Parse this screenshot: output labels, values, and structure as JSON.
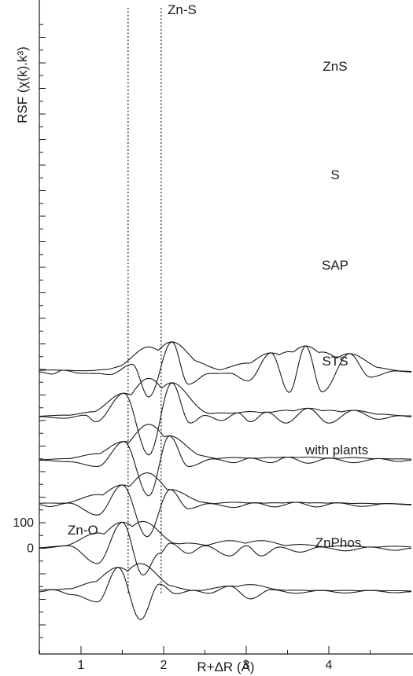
{
  "chart_data": {
    "type": "line",
    "xlabel": "R+ΔR (Å)",
    "ylabel": "RSF (χ(k).k³)",
    "xlim": [
      0.5,
      5.0
    ],
    "x_ticks": [
      1,
      2,
      3,
      4
    ],
    "x_tick_labels": [
      "1",
      "2",
      "3",
      "4"
    ],
    "y_tick_labels": [
      "100",
      "0"
    ],
    "y_tick_values": [
      100,
      0
    ],
    "reference_lines": [
      {
        "x": 1.57,
        "style": "dotted"
      },
      {
        "x": 1.97,
        "style": "dotted",
        "label": "Zn-S"
      }
    ],
    "annotations": [
      {
        "text": "Zn-S",
        "x": 1.97
      },
      {
        "text": "Zn-O",
        "x": 1.45
      }
    ],
    "series": [
      {
        "name": "ZnS",
        "offset": 690,
        "peaks": [
          [
            0.65,
            -8
          ],
          [
            0.78,
            7
          ],
          [
            1.0,
            -5
          ],
          [
            1.2,
            -6
          ],
          [
            1.35,
            -10
          ],
          [
            1.62,
            30
          ],
          [
            1.82,
            -98
          ],
          [
            2.1,
            118
          ],
          [
            2.3,
            -48
          ],
          [
            2.55,
            -6
          ],
          [
            2.8,
            -5
          ],
          [
            3.02,
            -35
          ],
          [
            3.3,
            75
          ],
          [
            3.52,
            -80
          ],
          [
            3.72,
            102
          ],
          [
            3.92,
            -78
          ],
          [
            4.25,
            72
          ],
          [
            4.5,
            -20
          ],
          [
            4.8,
            4
          ]
        ]
      },
      {
        "name": "S",
        "offset": 515,
        "peaks": [
          [
            0.8,
            -6
          ],
          [
            1.05,
            6
          ],
          [
            1.18,
            -20
          ],
          [
            1.52,
            92
          ],
          [
            1.82,
            -150
          ],
          [
            2.1,
            133
          ],
          [
            2.32,
            -25
          ],
          [
            2.5,
            5
          ],
          [
            2.7,
            -15
          ],
          [
            2.9,
            15
          ],
          [
            3.05,
            -20
          ],
          [
            3.25,
            18
          ],
          [
            3.48,
            -25
          ],
          [
            3.75,
            33
          ],
          [
            4.0,
            -25
          ],
          [
            4.3,
            25
          ],
          [
            4.6,
            -10
          ],
          [
            4.85,
            4
          ]
        ]
      },
      {
        "name": "SAP",
        "offset": 345,
        "peaks": [
          [
            0.85,
            -6
          ],
          [
            1.2,
            -25
          ],
          [
            1.52,
            73
          ],
          [
            1.82,
            -140
          ],
          [
            2.07,
            95
          ],
          [
            2.3,
            -25
          ],
          [
            2.6,
            5
          ],
          [
            2.85,
            -10
          ],
          [
            3.05,
            8
          ],
          [
            3.3,
            -10
          ],
          [
            3.5,
            12
          ],
          [
            3.75,
            -12
          ],
          [
            4.0,
            8
          ],
          [
            4.3,
            -10
          ],
          [
            4.6,
            6
          ],
          [
            4.85,
            -5
          ]
        ]
      },
      {
        "name": "STS",
        "offset": 170,
        "peaks": [
          [
            0.62,
            -7
          ],
          [
            0.85,
            7
          ],
          [
            1.2,
            -40
          ],
          [
            1.5,
            78
          ],
          [
            1.8,
            -125
          ],
          [
            2.08,
            60
          ],
          [
            2.3,
            -15
          ],
          [
            2.55,
            5
          ],
          [
            2.85,
            -10
          ],
          [
            3.1,
            8
          ],
          [
            3.35,
            -8
          ],
          [
            3.6,
            10
          ],
          [
            3.85,
            -8
          ],
          [
            4.1,
            8
          ],
          [
            4.4,
            -6
          ],
          [
            4.7,
            5
          ]
        ]
      },
      {
        "name": "with plants",
        "offset": 0,
        "peaks": [
          [
            0.85,
            10
          ],
          [
            1.2,
            -60
          ],
          [
            1.5,
            102
          ],
          [
            1.75,
            -105
          ],
          [
            1.95,
            -20
          ],
          [
            2.08,
            20
          ],
          [
            2.3,
            -20
          ],
          [
            2.5,
            10
          ],
          [
            2.8,
            -30
          ],
          [
            3.0,
            10
          ],
          [
            3.18,
            -30
          ],
          [
            3.4,
            5
          ],
          [
            3.65,
            -15
          ],
          [
            3.9,
            5
          ],
          [
            4.2,
            -10
          ],
          [
            4.5,
            5
          ],
          [
            4.8,
            -8
          ]
        ]
      },
      {
        "name": "ZnPhos",
        "offset": -170,
        "peaks": [
          [
            0.65,
            8
          ],
          [
            0.9,
            -12
          ],
          [
            1.2,
            -40
          ],
          [
            1.45,
            95
          ],
          [
            1.72,
            -110
          ],
          [
            1.95,
            30
          ],
          [
            2.15,
            -8
          ],
          [
            2.35,
            5
          ],
          [
            2.55,
            -6
          ],
          [
            2.8,
            22
          ],
          [
            3.05,
            -28
          ],
          [
            3.3,
            8
          ],
          [
            3.6,
            -6
          ],
          [
            3.9,
            5
          ],
          [
            4.2,
            -5
          ],
          [
            4.5,
            5
          ],
          [
            4.8,
            -4
          ]
        ]
      }
    ]
  }
}
